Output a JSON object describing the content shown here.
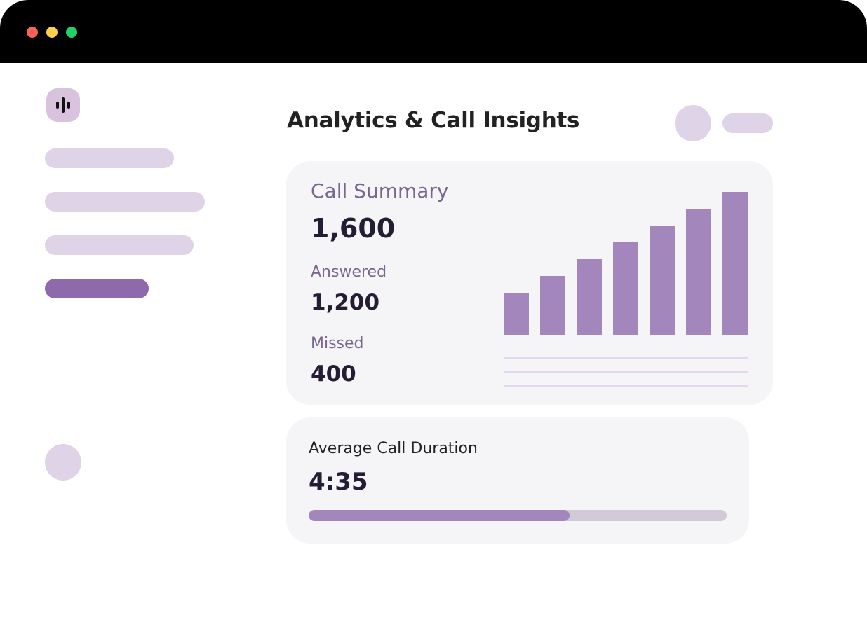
{
  "colors": {
    "titlebar": "#000000",
    "traffic_red": "#ff6159",
    "traffic_yellow": "#ffd04a",
    "traffic_green": "#22d06a",
    "logo_bg": "#d8c2de",
    "placeholder": "#dfd3e8",
    "nav_active": "#8e6aac",
    "card_bg": "#f5f4f7",
    "bar": "#a387bc",
    "label_purple": "#7a6790",
    "progress_track": "#d2cbd7",
    "progress_fill": "#a387bc",
    "gridline": "#e3d6ee"
  },
  "sidebar": {
    "logo_icon": "sound-wave-icon",
    "nav_items": [
      {
        "state": "placeholder"
      },
      {
        "state": "placeholder"
      },
      {
        "state": "placeholder"
      },
      {
        "state": "active"
      }
    ]
  },
  "header": {
    "title": "Analytics & Call Insights"
  },
  "call_summary": {
    "label": "Call Summary",
    "total": "1,600",
    "answered_label": "Answered",
    "answered_value": "1,200",
    "missed_label": "Missed",
    "missed_value": "400"
  },
  "chart_data": {
    "type": "bar",
    "values": [
      60,
      84,
      108,
      132,
      156,
      180,
      204
    ],
    "grid": true
  },
  "average_duration": {
    "label": "Average Call Duration",
    "value": "4:35",
    "progress_fraction": 0.624
  }
}
